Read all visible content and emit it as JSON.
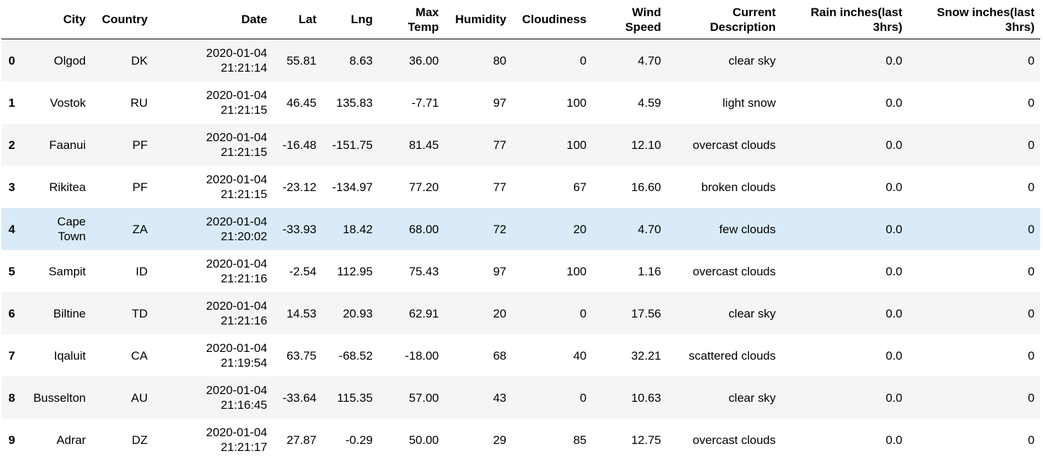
{
  "table": {
    "columns": [
      "City",
      "Country",
      "Date",
      "Lat",
      "Lng",
      "Max Temp",
      "Humidity",
      "Cloudiness",
      "Wind Speed",
      "Current Description",
      "Rain inches(last 3hrs)",
      "Snow inches(last 3hrs)"
    ],
    "rows": [
      {
        "index": "0",
        "city": "Olgod",
        "country": "DK",
        "date_day": "2020-01-04",
        "date_time": "21:21:14",
        "lat": "55.81",
        "lng": "8.63",
        "max_temp": "36.00",
        "humidity": "80",
        "cloudiness": "0",
        "wind_speed": "4.70",
        "description": "clear sky",
        "rain": "0.0",
        "snow": "0"
      },
      {
        "index": "1",
        "city": "Vostok",
        "country": "RU",
        "date_day": "2020-01-04",
        "date_time": "21:21:15",
        "lat": "46.45",
        "lng": "135.83",
        "max_temp": "-7.71",
        "humidity": "97",
        "cloudiness": "100",
        "wind_speed": "4.59",
        "description": "light snow",
        "rain": "0.0",
        "snow": "0"
      },
      {
        "index": "2",
        "city": "Faanui",
        "country": "PF",
        "date_day": "2020-01-04",
        "date_time": "21:21:15",
        "lat": "-16.48",
        "lng": "-151.75",
        "max_temp": "81.45",
        "humidity": "77",
        "cloudiness": "100",
        "wind_speed": "12.10",
        "description": "overcast clouds",
        "rain": "0.0",
        "snow": "0"
      },
      {
        "index": "3",
        "city": "Rikitea",
        "country": "PF",
        "date_day": "2020-01-04",
        "date_time": "21:21:15",
        "lat": "-23.12",
        "lng": "-134.97",
        "max_temp": "77.20",
        "humidity": "77",
        "cloudiness": "67",
        "wind_speed": "16.60",
        "description": "broken clouds",
        "rain": "0.0",
        "snow": "0"
      },
      {
        "index": "4",
        "city": "Cape Town",
        "country": "ZA",
        "date_day": "2020-01-04",
        "date_time": "21:20:02",
        "lat": "-33.93",
        "lng": "18.42",
        "max_temp": "68.00",
        "humidity": "72",
        "cloudiness": "20",
        "wind_speed": "4.70",
        "description": "few clouds",
        "rain": "0.0",
        "snow": "0"
      },
      {
        "index": "5",
        "city": "Sampit",
        "country": "ID",
        "date_day": "2020-01-04",
        "date_time": "21:21:16",
        "lat": "-2.54",
        "lng": "112.95",
        "max_temp": "75.43",
        "humidity": "97",
        "cloudiness": "100",
        "wind_speed": "1.16",
        "description": "overcast clouds",
        "rain": "0.0",
        "snow": "0"
      },
      {
        "index": "6",
        "city": "Biltine",
        "country": "TD",
        "date_day": "2020-01-04",
        "date_time": "21:21:16",
        "lat": "14.53",
        "lng": "20.93",
        "max_temp": "62.91",
        "humidity": "20",
        "cloudiness": "0",
        "wind_speed": "17.56",
        "description": "clear sky",
        "rain": "0.0",
        "snow": "0"
      },
      {
        "index": "7",
        "city": "Iqaluit",
        "country": "CA",
        "date_day": "2020-01-04",
        "date_time": "21:19:54",
        "lat": "63.75",
        "lng": "-68.52",
        "max_temp": "-18.00",
        "humidity": "68",
        "cloudiness": "40",
        "wind_speed": "32.21",
        "description": "scattered clouds",
        "rain": "0.0",
        "snow": "0"
      },
      {
        "index": "8",
        "city": "Busselton",
        "country": "AU",
        "date_day": "2020-01-04",
        "date_time": "21:16:45",
        "lat": "-33.64",
        "lng": "115.35",
        "max_temp": "57.00",
        "humidity": "43",
        "cloudiness": "0",
        "wind_speed": "10.63",
        "description": "clear sky",
        "rain": "0.0",
        "snow": "0"
      },
      {
        "index": "9",
        "city": "Adrar",
        "country": "DZ",
        "date_day": "2020-01-04",
        "date_time": "21:21:17",
        "lat": "27.87",
        "lng": "-0.29",
        "max_temp": "50.00",
        "humidity": "29",
        "cloudiness": "85",
        "wind_speed": "12.75",
        "description": "overcast clouds",
        "rain": "0.0",
        "snow": "0"
      }
    ],
    "hover_row_index": 4,
    "colors": {
      "stripe": "#f5f5f5",
      "hover": "#d9ebf8",
      "header_border": "#000000"
    }
  }
}
